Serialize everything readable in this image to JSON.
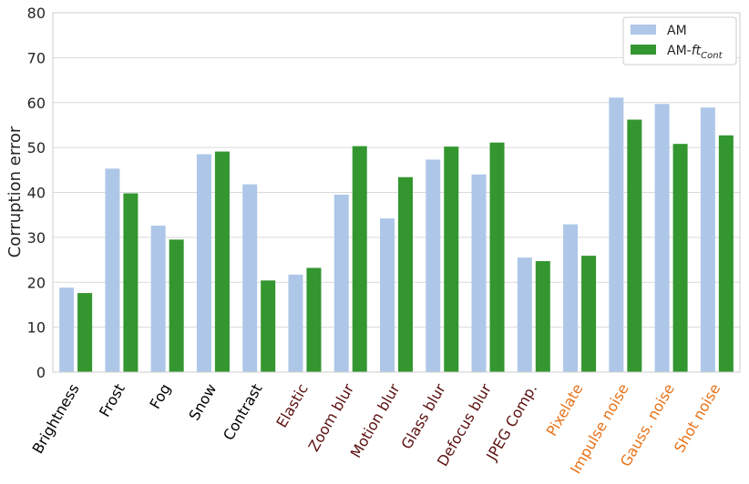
{
  "chart_data": {
    "type": "bar",
    "ylabel": "Corruption error",
    "xlabel": "",
    "ylim": [
      0,
      80
    ],
    "yticks": [
      0,
      10,
      20,
      30,
      40,
      50,
      60,
      70,
      80
    ],
    "grid": true,
    "legend_position": "top-right",
    "categories": [
      "Brightness",
      "Frost",
      "Fog",
      "Snow",
      "Contrast",
      "Elastic",
      "Zoom blur",
      "Motion blur",
      "Glass blur",
      "Defocus blur",
      "JPEG Comp.",
      "Pixelate",
      "Impulse noise",
      "Gauss. noise",
      "Shot noise"
    ],
    "category_colors": [
      "#000000",
      "#000000",
      "#000000",
      "#000000",
      "#000000",
      "#5c0f0f",
      "#5c0f0f",
      "#5c0f0f",
      "#5c0f0f",
      "#5c0f0f",
      "#5c0f0f",
      "#e8731a",
      "#e8731a",
      "#e8731a",
      "#e8731a"
    ],
    "series": [
      {
        "name": "AM",
        "legend_main": "AM",
        "legend_sub": "",
        "color": "#aec7e8",
        "values": [
          18.8,
          45.3,
          32.6,
          48.5,
          41.8,
          21.7,
          39.5,
          34.2,
          47.3,
          44.0,
          25.5,
          32.9,
          61.1,
          59.7,
          58.9
        ]
      },
      {
        "name": "AM-ftCont",
        "legend_main": "AM-",
        "legend_ital": "ft",
        "legend_sub": "Cont",
        "color": "#33962f",
        "values": [
          17.6,
          39.8,
          29.5,
          49.1,
          20.4,
          23.2,
          50.3,
          43.4,
          50.2,
          51.1,
          24.7,
          25.9,
          56.2,
          50.8,
          52.7
        ]
      }
    ]
  }
}
